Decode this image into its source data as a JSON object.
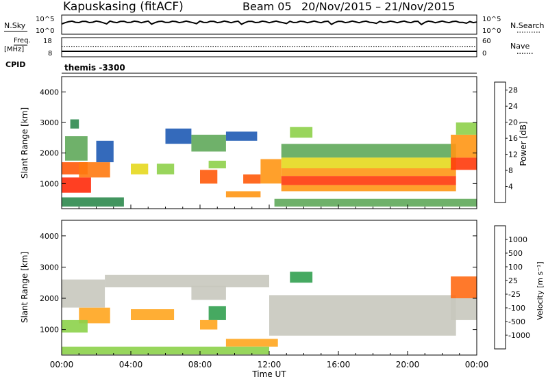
{
  "header": {
    "station": "Kapuskasing (fitACF)",
    "beam": "Beam 05",
    "date_range": "20/Nov/2015 – 21/Nov/2015"
  },
  "top_panels": {
    "nsky_label": "N.Sky",
    "nsky_ticks": [
      "10^5",
      "10^0"
    ],
    "nsearch_label": "N.Search",
    "nsearch_ticks": [
      "10^5",
      "10^0"
    ],
    "freq_label": "Freq.",
    "freq_unit": "[MHz]",
    "freq_ticks": [
      "18",
      "8"
    ],
    "nave_label": "Nave",
    "nave_ticks": [
      "60",
      "0"
    ],
    "cpid_label": "CPID",
    "cpid_value": "themis -3300"
  },
  "colors": {
    "power": [
      "#1e28ff",
      "#1e5ab4",
      "#2d8a4e",
      "#5fa85a",
      "#8ed04a",
      "#e6d81e",
      "#ff9614",
      "#ff5a0a",
      "#ff1e0a"
    ],
    "velocity": [
      "#ff1e1e",
      "#ff6a14",
      "#ffa51e",
      "#c8c8be",
      "#c8c8be",
      "#8cd24a",
      "#32a050",
      "#2864c8",
      "#1e28c8"
    ]
  },
  "chart_data": [
    {
      "type": "heatmap",
      "parameter": "Power",
      "ylabel": "Slant Range [km]",
      "ylim": [
        180,
        4500
      ],
      "yticks": [
        1000,
        2000,
        3000,
        4000
      ],
      "xlim_hours": [
        0,
        24
      ],
      "colorbar_label": "Power [dB]",
      "colorbar_ticks": [
        4,
        8,
        12,
        16,
        20,
        24,
        28
      ],
      "colorbar_range": [
        0,
        30
      ],
      "regions": [
        {
          "t0": 0.0,
          "t1": 1.7,
          "r0": 700,
          "r1": 1200,
          "color": "#ff2a0a"
        },
        {
          "t0": 0.0,
          "t1": 1.5,
          "r0": 1300,
          "r1": 1700,
          "color": "#ff5a0a"
        },
        {
          "t0": 0.2,
          "t1": 1.5,
          "r0": 1750,
          "r1": 2550,
          "color": "#5fa85a"
        },
        {
          "t0": 1.0,
          "t1": 2.8,
          "r0": 1200,
          "r1": 1700,
          "color": "#ff7a10"
        },
        {
          "t0": 0.0,
          "t1": 3.6,
          "r0": 250,
          "r1": 550,
          "color": "#2d8a4e"
        },
        {
          "t0": 2.0,
          "t1": 3.0,
          "r0": 1700,
          "r1": 2400,
          "color": "#1e5ab4"
        },
        {
          "t0": 4.0,
          "t1": 5.0,
          "r0": 1300,
          "r1": 1650,
          "color": "#e6d81e"
        },
        {
          "t0": 5.5,
          "t1": 6.5,
          "r0": 1300,
          "r1": 1650,
          "color": "#8ed04a"
        },
        {
          "t0": 6.0,
          "t1": 7.5,
          "r0": 2300,
          "r1": 2800,
          "color": "#1e5ab4"
        },
        {
          "t0": 7.5,
          "t1": 9.5,
          "r0": 2050,
          "r1": 2600,
          "color": "#5fa85a"
        },
        {
          "t0": 9.5,
          "t1": 11.3,
          "r0": 2400,
          "r1": 2700,
          "color": "#1e5ab4"
        },
        {
          "t0": 8.0,
          "t1": 9.0,
          "r0": 1000,
          "r1": 1450,
          "color": "#ff5a0a"
        },
        {
          "t0": 8.5,
          "t1": 9.5,
          "r0": 1500,
          "r1": 1750,
          "color": "#8ed04a"
        },
        {
          "t0": 9.5,
          "t1": 11.5,
          "r0": 550,
          "r1": 750,
          "color": "#ff9614"
        },
        {
          "t0": 10.5,
          "t1": 11.5,
          "r0": 1000,
          "r1": 1300,
          "color": "#ff5a0a"
        },
        {
          "t0": 11.5,
          "t1": 12.7,
          "r0": 1000,
          "r1": 1800,
          "color": "#ff9614"
        },
        {
          "t0": 12.7,
          "t1": 22.8,
          "r0": 1850,
          "r1": 2300,
          "color": "#5fa85a"
        },
        {
          "t0": 12.7,
          "t1": 22.8,
          "r0": 1500,
          "r1": 1850,
          "color": "#e6d81e"
        },
        {
          "t0": 12.7,
          "t1": 22.8,
          "r0": 1250,
          "r1": 1500,
          "color": "#ff9614"
        },
        {
          "t0": 12.7,
          "t1": 22.8,
          "r0": 950,
          "r1": 1250,
          "color": "#ff3a0a"
        },
        {
          "t0": 12.7,
          "t1": 22.8,
          "r0": 750,
          "r1": 950,
          "color": "#ff9614"
        },
        {
          "t0": 22.5,
          "t1": 24.0,
          "r0": 1450,
          "r1": 1850,
          "color": "#ff3a0a"
        },
        {
          "t0": 22.5,
          "t1": 24.0,
          "r0": 1850,
          "r1": 2600,
          "color": "#ff9614"
        },
        {
          "t0": 22.8,
          "t1": 24.0,
          "r0": 2600,
          "r1": 3000,
          "color": "#8ed04a"
        },
        {
          "t0": 12.3,
          "t1": 24.0,
          "r0": 250,
          "r1": 500,
          "color": "#5fa85a"
        },
        {
          "t0": 13.2,
          "t1": 14.5,
          "r0": 2500,
          "r1": 2850,
          "color": "#8ed04a"
        },
        {
          "t0": 0.5,
          "t1": 1.0,
          "r0": 2800,
          "r1": 3100,
          "color": "#2d8a4e"
        }
      ]
    },
    {
      "type": "heatmap",
      "parameter": "Velocity",
      "ylabel": "Slant Range [km]",
      "xlabel": "Time UT",
      "ylim": [
        180,
        4500
      ],
      "yticks": [
        1000,
        2000,
        3000,
        4000
      ],
      "xlim_hours": [
        0,
        24
      ],
      "xticks": [
        "00:00",
        "04:00",
        "08:00",
        "12:00",
        "16:00",
        "20:00",
        "00:00"
      ],
      "colorbar_label": "Velocity [m s⁻¹]",
      "colorbar_ticks": [
        -1000,
        -500,
        -100,
        -25,
        25,
        100,
        500,
        1000
      ],
      "regions": [
        {
          "t0": 0.0,
          "t1": 2.5,
          "r0": 1700,
          "r1": 2600,
          "color": "#c8c8be"
        },
        {
          "t0": 1.0,
          "t1": 2.8,
          "r0": 1200,
          "r1": 1700,
          "color": "#ffa51e"
        },
        {
          "t0": 0.0,
          "t1": 1.5,
          "r0": 900,
          "r1": 1300,
          "color": "#8cd24a"
        },
        {
          "t0": 2.5,
          "t1": 12.0,
          "r0": 2350,
          "r1": 2750,
          "color": "#c8c8be"
        },
        {
          "t0": 4.0,
          "t1": 6.5,
          "r0": 1300,
          "r1": 1650,
          "color": "#ffa51e"
        },
        {
          "t0": 7.5,
          "t1": 9.5,
          "r0": 1950,
          "r1": 2400,
          "color": "#c8c8be"
        },
        {
          "t0": 8.5,
          "t1": 9.5,
          "r0": 1300,
          "r1": 1750,
          "color": "#32a050"
        },
        {
          "t0": 8.0,
          "t1": 9.0,
          "r0": 1000,
          "r1": 1300,
          "color": "#ffa51e"
        },
        {
          "t0": 9.5,
          "t1": 12.5,
          "r0": 450,
          "r1": 700,
          "color": "#ffa51e"
        },
        {
          "t0": 12.0,
          "t1": 22.8,
          "r0": 800,
          "r1": 2100,
          "color": "#c8c8be"
        },
        {
          "t0": 22.5,
          "t1": 24.0,
          "r0": 1300,
          "r1": 2000,
          "color": "#c8c8be"
        },
        {
          "t0": 22.5,
          "t1": 24.0,
          "r0": 2000,
          "r1": 2700,
          "color": "#ff6a14"
        },
        {
          "t0": 0.0,
          "t1": 12.0,
          "r0": 200,
          "r1": 450,
          "color": "#8cd24a"
        },
        {
          "t0": 13.2,
          "t1": 14.5,
          "r0": 2500,
          "r1": 2850,
          "color": "#32a050"
        }
      ]
    }
  ]
}
